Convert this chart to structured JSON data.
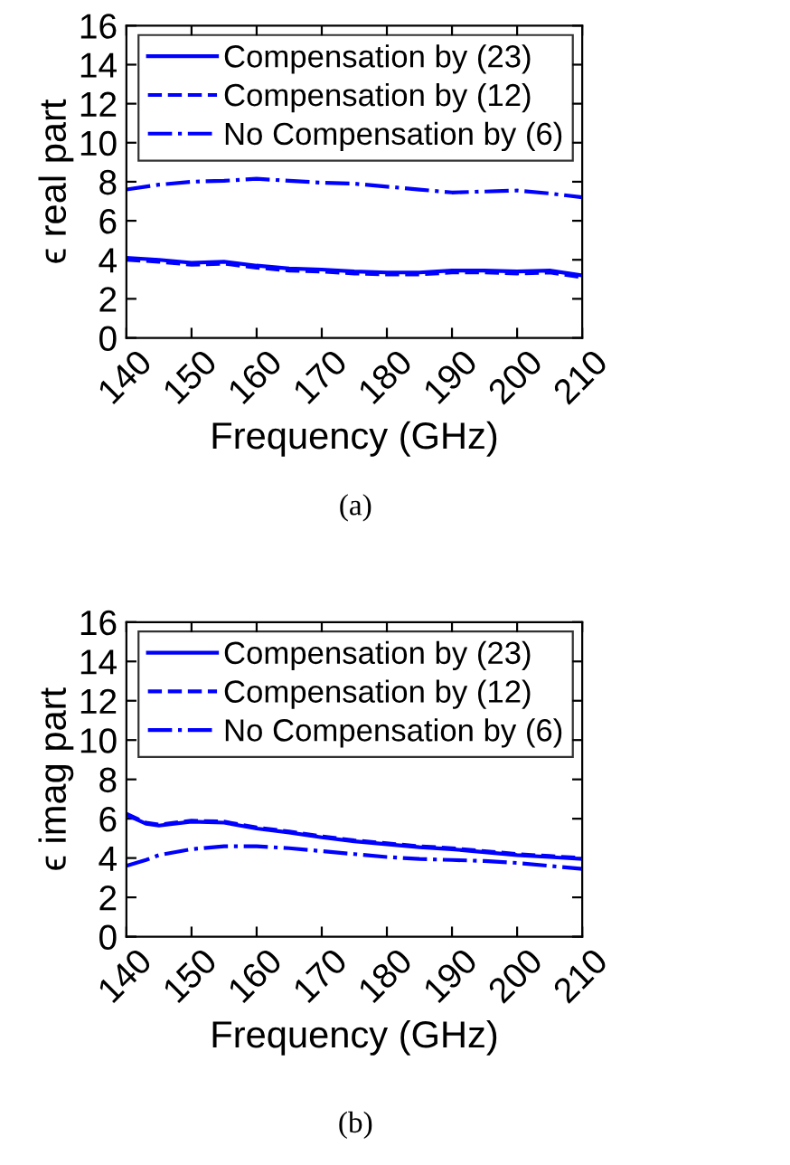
{
  "chart_data": [
    {
      "type": "line",
      "xlabel": "Frequency (GHz)",
      "ylabel": "ϵ real part",
      "xlim": [
        140,
        210
      ],
      "ylim": [
        0,
        16
      ],
      "xticks": [
        140,
        150,
        160,
        170,
        180,
        190,
        200,
        210
      ],
      "yticks": [
        0,
        2,
        4,
        6,
        8,
        10,
        12,
        14,
        16
      ],
      "grid": false,
      "legend": "top right",
      "marker": "none",
      "annotations": [
        "(a)"
      ],
      "x": [
        140,
        145,
        150,
        155,
        160,
        165,
        170,
        175,
        180,
        185,
        190,
        195,
        200,
        205,
        210
      ],
      "series": [
        {
          "name": "Compensation by (23)",
          "color": "#0000ff",
          "line_style": "solid",
          "values": [
            4.1,
            4.0,
            3.85,
            3.9,
            3.7,
            3.55,
            3.5,
            3.4,
            3.35,
            3.35,
            3.45,
            3.45,
            3.4,
            3.45,
            3.2
          ]
        },
        {
          "name": "Compensation by (12)",
          "color": "#0000ff",
          "line_style": "dashed",
          "values": [
            4.0,
            3.9,
            3.75,
            3.8,
            3.6,
            3.45,
            3.4,
            3.3,
            3.25,
            3.25,
            3.35,
            3.35,
            3.3,
            3.35,
            3.1
          ]
        },
        {
          "name": "No Compensation by (6)",
          "color": "#0000ff",
          "line_style": "dashdot",
          "values": [
            7.6,
            7.85,
            8.0,
            8.05,
            8.15,
            8.05,
            7.95,
            7.9,
            7.75,
            7.6,
            7.45,
            7.5,
            7.55,
            7.4,
            7.2
          ]
        }
      ]
    },
    {
      "type": "line",
      "xlabel": "Frequency (GHz)",
      "ylabel": "ϵ imag part",
      "xlim": [
        140,
        210
      ],
      "ylim": [
        0,
        16
      ],
      "xticks": [
        140,
        150,
        160,
        170,
        180,
        190,
        200,
        210
      ],
      "yticks": [
        0,
        2,
        4,
        6,
        8,
        10,
        12,
        14,
        16
      ],
      "grid": false,
      "legend": "top right",
      "marker": "none",
      "annotations": [
        "(b)"
      ],
      "x": [
        140,
        143,
        145,
        150,
        155,
        160,
        165,
        170,
        175,
        180,
        185,
        190,
        195,
        200,
        205,
        210
      ],
      "series": [
        {
          "name": "Compensation by (23)",
          "color": "#0000ff",
          "line_style": "solid",
          "values": [
            6.2,
            5.75,
            5.65,
            5.85,
            5.8,
            5.5,
            5.3,
            5.05,
            4.85,
            4.7,
            4.55,
            4.45,
            4.3,
            4.15,
            4.05,
            3.95
          ]
        },
        {
          "name": "Compensation by (12)",
          "color": "#0000ff",
          "line_style": "dashed",
          "values": [
            6.25,
            5.8,
            5.7,
            5.9,
            5.85,
            5.55,
            5.35,
            5.1,
            4.9,
            4.75,
            4.6,
            4.5,
            4.35,
            4.2,
            4.1,
            4.0
          ]
        },
        {
          "name": "No Compensation by (6)",
          "color": "#0000ff",
          "line_style": "dashdot",
          "values": [
            3.6,
            3.9,
            4.15,
            4.45,
            4.6,
            4.6,
            4.5,
            4.35,
            4.2,
            4.05,
            3.95,
            3.9,
            3.85,
            3.75,
            3.6,
            3.45
          ]
        }
      ]
    }
  ]
}
